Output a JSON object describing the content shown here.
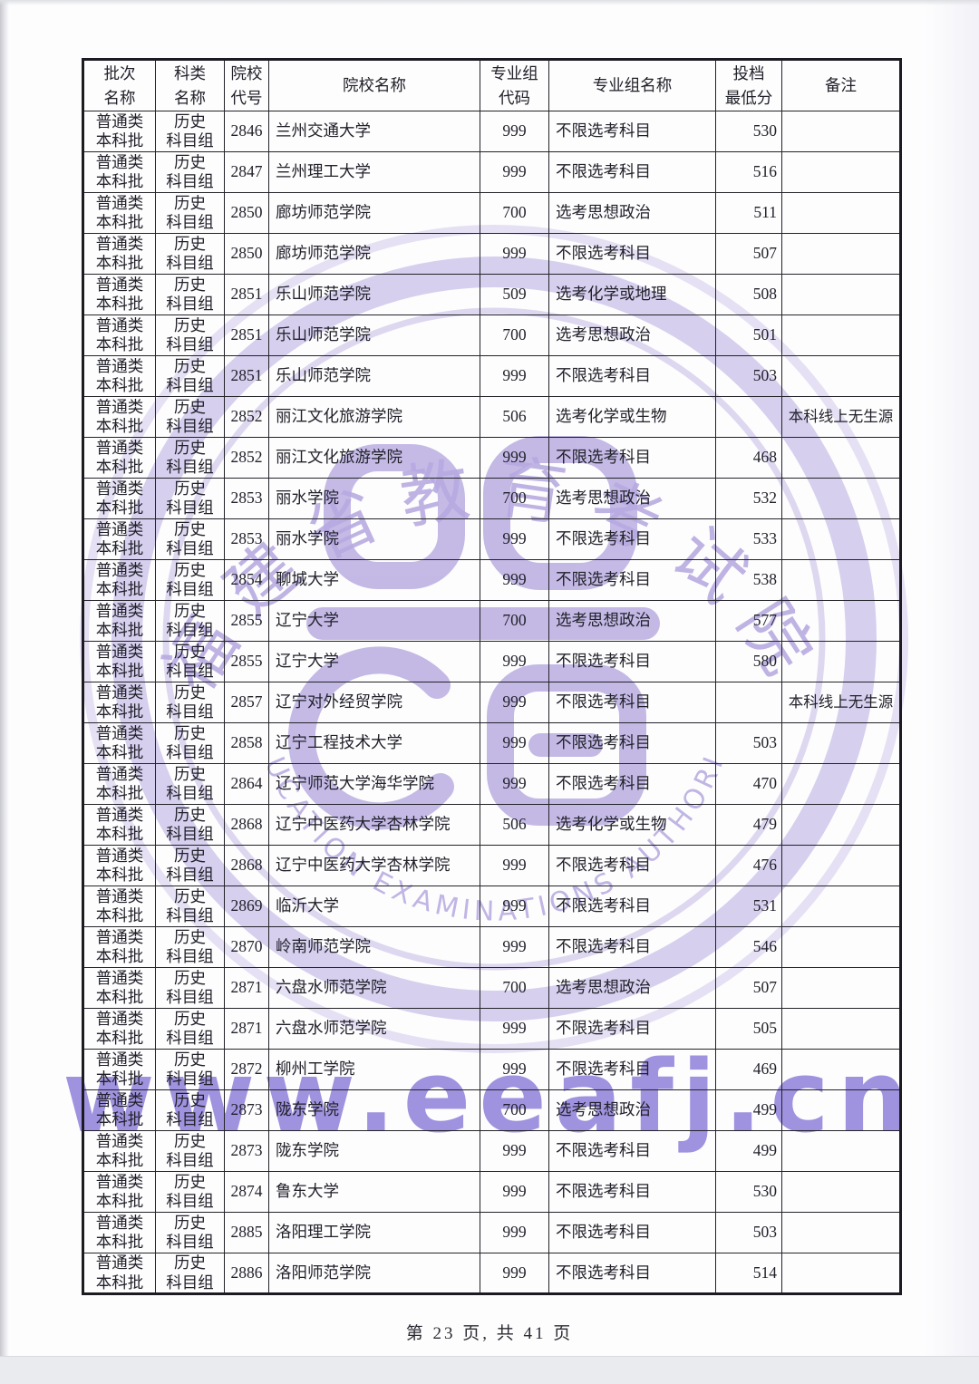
{
  "page": {
    "footer_text": "第 23 页, 共 41 页"
  },
  "watermark": {
    "url_text": "www.eeafj.cn",
    "seal_top_text": "福建省教育考试院",
    "seal_bottom_text": "EDUCATION EXAMINATIONS AUTHORITY",
    "seal_color": "#b7a9e0",
    "url_color": "#7b6ad2"
  },
  "table": {
    "headers": [
      [
        "批次",
        "名称"
      ],
      [
        "科类",
        "名称"
      ],
      [
        "院校",
        "代号"
      ],
      [
        "院校名称"
      ],
      [
        "专业组",
        "代码"
      ],
      [
        "专业组名称"
      ],
      [
        "投档",
        "最低分"
      ],
      [
        "备注"
      ]
    ],
    "batch_lines": [
      "普通类",
      "本科批"
    ],
    "subject_lines": [
      "历史",
      "科目组"
    ],
    "rows": [
      {
        "code": "2846",
        "school": "兰州交通大学",
        "group_code": "999",
        "group_name": "不限选考科目",
        "score": "530",
        "remark": ""
      },
      {
        "code": "2847",
        "school": "兰州理工大学",
        "group_code": "999",
        "group_name": "不限选考科目",
        "score": "516",
        "remark": ""
      },
      {
        "code": "2850",
        "school": "廊坊师范学院",
        "group_code": "700",
        "group_name": "选考思想政治",
        "score": "511",
        "remark": ""
      },
      {
        "code": "2850",
        "school": "廊坊师范学院",
        "group_code": "999",
        "group_name": "不限选考科目",
        "score": "507",
        "remark": ""
      },
      {
        "code": "2851",
        "school": "乐山师范学院",
        "group_code": "509",
        "group_name": "选考化学或地理",
        "score": "508",
        "remark": ""
      },
      {
        "code": "2851",
        "school": "乐山师范学院",
        "group_code": "700",
        "group_name": "选考思想政治",
        "score": "501",
        "remark": ""
      },
      {
        "code": "2851",
        "school": "乐山师范学院",
        "group_code": "999",
        "group_name": "不限选考科目",
        "score": "503",
        "remark": ""
      },
      {
        "code": "2852",
        "school": "丽江文化旅游学院",
        "group_code": "506",
        "group_name": "选考化学或生物",
        "score": "",
        "remark": "本科线上无生源"
      },
      {
        "code": "2852",
        "school": "丽江文化旅游学院",
        "group_code": "999",
        "group_name": "不限选考科目",
        "score": "468",
        "remark": ""
      },
      {
        "code": "2853",
        "school": "丽水学院",
        "group_code": "700",
        "group_name": "选考思想政治",
        "score": "532",
        "remark": ""
      },
      {
        "code": "2853",
        "school": "丽水学院",
        "group_code": "999",
        "group_name": "不限选考科目",
        "score": "533",
        "remark": ""
      },
      {
        "code": "2854",
        "school": "聊城大学",
        "group_code": "999",
        "group_name": "不限选考科目",
        "score": "538",
        "remark": ""
      },
      {
        "code": "2855",
        "school": "辽宁大学",
        "group_code": "700",
        "group_name": "选考思想政治",
        "score": "577",
        "remark": ""
      },
      {
        "code": "2855",
        "school": "辽宁大学",
        "group_code": "999",
        "group_name": "不限选考科目",
        "score": "580",
        "remark": ""
      },
      {
        "code": "2857",
        "school": "辽宁对外经贸学院",
        "group_code": "999",
        "group_name": "不限选考科目",
        "score": "",
        "remark": "本科线上无生源"
      },
      {
        "code": "2858",
        "school": "辽宁工程技术大学",
        "group_code": "999",
        "group_name": "不限选考科目",
        "score": "503",
        "remark": ""
      },
      {
        "code": "2864",
        "school": "辽宁师范大学海华学院",
        "group_code": "999",
        "group_name": "不限选考科目",
        "score": "470",
        "remark": ""
      },
      {
        "code": "2868",
        "school": "辽宁中医药大学杏林学院",
        "group_code": "506",
        "group_name": "选考化学或生物",
        "score": "479",
        "remark": ""
      },
      {
        "code": "2868",
        "school": "辽宁中医药大学杏林学院",
        "group_code": "999",
        "group_name": "不限选考科目",
        "score": "476",
        "remark": ""
      },
      {
        "code": "2869",
        "school": "临沂大学",
        "group_code": "999",
        "group_name": "不限选考科目",
        "score": "531",
        "remark": ""
      },
      {
        "code": "2870",
        "school": "岭南师范学院",
        "group_code": "999",
        "group_name": "不限选考科目",
        "score": "546",
        "remark": ""
      },
      {
        "code": "2871",
        "school": "六盘水师范学院",
        "group_code": "700",
        "group_name": "选考思想政治",
        "score": "507",
        "remark": ""
      },
      {
        "code": "2871",
        "school": "六盘水师范学院",
        "group_code": "999",
        "group_name": "不限选考科目",
        "score": "505",
        "remark": ""
      },
      {
        "code": "2872",
        "school": "柳州工学院",
        "group_code": "999",
        "group_name": "不限选考科目",
        "score": "469",
        "remark": ""
      },
      {
        "code": "2873",
        "school": "陇东学院",
        "group_code": "700",
        "group_name": "选考思想政治",
        "score": "499",
        "remark": ""
      },
      {
        "code": "2873",
        "school": "陇东学院",
        "group_code": "999",
        "group_name": "不限选考科目",
        "score": "499",
        "remark": ""
      },
      {
        "code": "2874",
        "school": "鲁东大学",
        "group_code": "999",
        "group_name": "不限选考科目",
        "score": "530",
        "remark": ""
      },
      {
        "code": "2885",
        "school": "洛阳理工学院",
        "group_code": "999",
        "group_name": "不限选考科目",
        "score": "503",
        "remark": ""
      },
      {
        "code": "2886",
        "school": "洛阳师范学院",
        "group_code": "999",
        "group_name": "不限选考科目",
        "score": "514",
        "remark": ""
      }
    ]
  }
}
